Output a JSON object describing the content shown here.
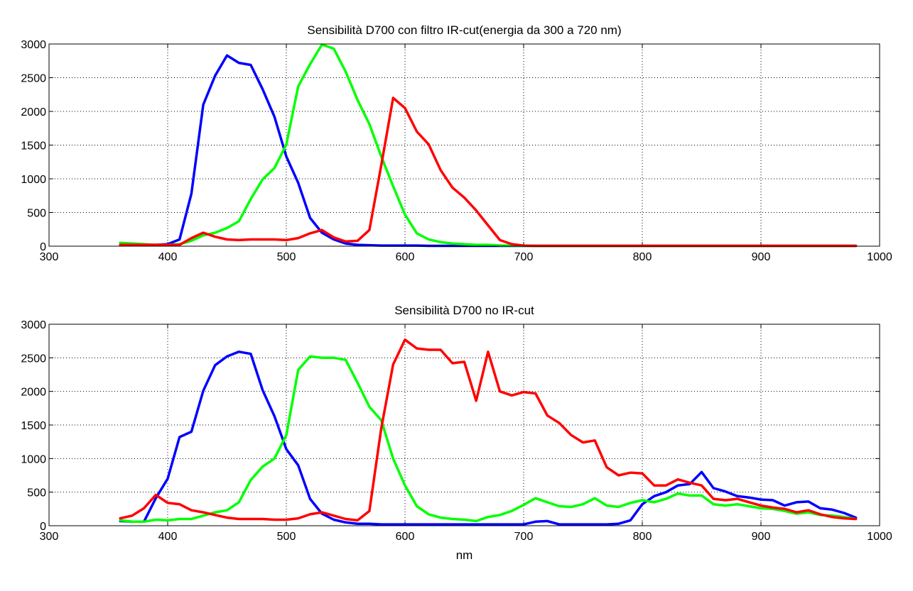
{
  "chart_data": [
    {
      "type": "line",
      "title": "Sensibilità D700 con filtro IR-cut(energia da 300 a 720 nm)",
      "xlabel": "",
      "ylabel": "",
      "xlim": [
        300,
        1000
      ],
      "ylim": [
        0,
        3000
      ],
      "xticks": [
        "300",
        "400",
        "500",
        "600",
        "700",
        "800",
        "900",
        "1000"
      ],
      "yticks": [
        "0",
        "500",
        "1000",
        "1500",
        "2000",
        "2500",
        "3000"
      ],
      "grid": true,
      "legend": "none",
      "x": [
        360,
        370,
        380,
        390,
        400,
        410,
        420,
        430,
        440,
        450,
        460,
        470,
        480,
        490,
        500,
        510,
        520,
        530,
        540,
        550,
        560,
        570,
        580,
        590,
        600,
        610,
        620,
        630,
        640,
        650,
        660,
        670,
        680,
        690,
        700,
        710,
        720,
        730,
        740,
        750,
        760,
        770,
        780,
        790,
        800,
        810,
        820,
        830,
        840,
        850,
        860,
        870,
        880,
        890,
        900,
        910,
        920,
        930,
        940,
        950,
        960,
        970,
        980
      ],
      "series": [
        {
          "color": "#0000ff",
          "values": [
            20,
            20,
            20,
            20,
            30,
            100,
            780,
            2100,
            2530,
            2830,
            2720,
            2690,
            2330,
            1920,
            1330,
            940,
            420,
            200,
            100,
            40,
            20,
            15,
            10,
            10,
            10,
            10,
            5,
            5,
            5,
            5,
            5,
            5,
            5,
            5,
            5,
            5,
            5,
            5,
            5,
            5,
            5,
            5,
            5,
            5,
            5,
            5,
            5,
            5,
            5,
            5,
            5,
            5,
            5,
            5,
            5,
            5,
            5,
            5,
            5,
            5,
            5,
            5,
            5
          ]
        },
        {
          "color": "#00ff00",
          "values": [
            50,
            40,
            30,
            20,
            20,
            30,
            80,
            160,
            200,
            270,
            370,
            700,
            990,
            1160,
            1510,
            2370,
            2700,
            2990,
            2930,
            2590,
            2170,
            1810,
            1330,
            890,
            470,
            190,
            100,
            60,
            40,
            30,
            20,
            20,
            10,
            10,
            5,
            5,
            5,
            5,
            5,
            5,
            5,
            5,
            5,
            5,
            5,
            5,
            5,
            5,
            5,
            5,
            5,
            5,
            5,
            5,
            5,
            5,
            5,
            5,
            5,
            5,
            5,
            5,
            5
          ]
        },
        {
          "color": "#ff0000",
          "values": [
            20,
            20,
            20,
            20,
            20,
            20,
            120,
            200,
            140,
            100,
            90,
            100,
            100,
            100,
            90,
            120,
            190,
            240,
            130,
            70,
            80,
            240,
            1200,
            2200,
            2050,
            1700,
            1510,
            1130,
            870,
            720,
            530,
            310,
            90,
            30,
            10,
            5,
            5,
            5,
            5,
            5,
            5,
            5,
            5,
            5,
            5,
            5,
            5,
            5,
            5,
            5,
            5,
            5,
            5,
            5,
            5,
            5,
            5,
            5,
            5,
            5,
            5,
            5,
            5
          ]
        }
      ]
    },
    {
      "type": "line",
      "title": "Sensibilità D700 no IR-cut",
      "xlabel": "nm",
      "ylabel": "",
      "xlim": [
        300,
        1000
      ],
      "ylim": [
        0,
        3000
      ],
      "xticks": [
        "300",
        "400",
        "500",
        "600",
        "700",
        "800",
        "900",
        "1000"
      ],
      "yticks": [
        "0",
        "500",
        "1000",
        "1500",
        "2000",
        "2500",
        "3000"
      ],
      "grid": true,
      "legend": "none",
      "x": [
        360,
        370,
        380,
        390,
        400,
        410,
        420,
        430,
        440,
        450,
        460,
        470,
        480,
        490,
        500,
        510,
        520,
        530,
        540,
        550,
        560,
        570,
        580,
        590,
        600,
        610,
        620,
        630,
        640,
        650,
        660,
        670,
        680,
        690,
        700,
        710,
        720,
        730,
        740,
        750,
        760,
        770,
        780,
        790,
        800,
        810,
        820,
        830,
        840,
        850,
        860,
        870,
        880,
        890,
        900,
        910,
        920,
        930,
        940,
        950,
        960,
        970,
        980
      ],
      "series": [
        {
          "color": "#0000ff",
          "values": [
            70,
            60,
            60,
            410,
            700,
            1320,
            1400,
            2010,
            2390,
            2520,
            2590,
            2560,
            2020,
            1630,
            1140,
            900,
            400,
            180,
            90,
            50,
            30,
            30,
            20,
            20,
            20,
            20,
            20,
            20,
            20,
            20,
            20,
            20,
            20,
            20,
            20,
            60,
            70,
            20,
            20,
            20,
            20,
            20,
            30,
            80,
            320,
            440,
            500,
            600,
            620,
            800,
            560,
            510,
            440,
            420,
            390,
            380,
            300,
            350,
            360,
            260,
            240,
            190,
            120
          ]
        },
        {
          "color": "#00ff00",
          "values": [
            80,
            60,
            60,
            90,
            80,
            100,
            100,
            150,
            200,
            230,
            350,
            680,
            880,
            1000,
            1350,
            2320,
            2520,
            2500,
            2500,
            2470,
            2130,
            1770,
            1570,
            1000,
            600,
            290,
            170,
            120,
            100,
            90,
            70,
            130,
            160,
            220,
            310,
            410,
            350,
            290,
            280,
            320,
            410,
            300,
            280,
            340,
            380,
            350,
            400,
            480,
            450,
            450,
            320,
            300,
            320,
            290,
            260,
            250,
            220,
            180,
            200,
            160,
            150,
            130,
            100
          ]
        },
        {
          "color": "#ff0000",
          "values": [
            110,
            150,
            260,
            460,
            340,
            320,
            230,
            200,
            160,
            120,
            100,
            100,
            100,
            90,
            90,
            110,
            170,
            200,
            150,
            100,
            80,
            220,
            1450,
            2400,
            2770,
            2640,
            2620,
            2620,
            2420,
            2440,
            1860,
            2590,
            2000,
            1940,
            1990,
            1970,
            1640,
            1530,
            1350,
            1240,
            1270,
            870,
            750,
            790,
            780,
            600,
            600,
            690,
            640,
            600,
            400,
            380,
            400,
            350,
            300,
            270,
            250,
            200,
            230,
            170,
            130,
            110,
            100
          ]
        }
      ]
    }
  ]
}
